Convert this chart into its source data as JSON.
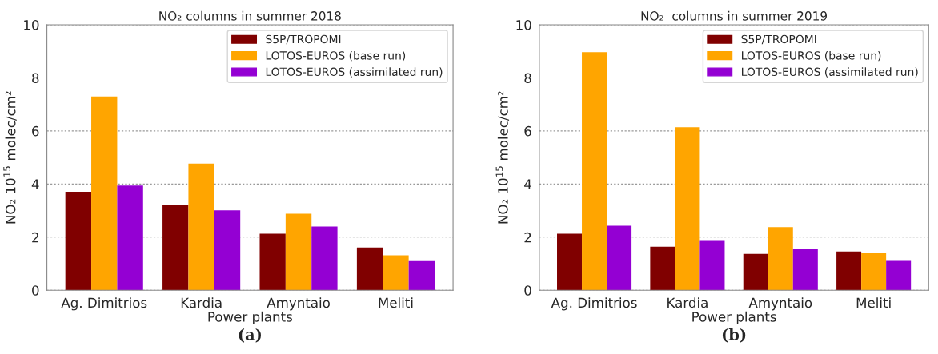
{
  "chart_data": [
    {
      "type": "bar",
      "title": "NO₂ columns in summer 2018",
      "xlabel": "Power plants",
      "ylabel": "NO₂ 10$^{15}$ molec/cm²",
      "categories": [
        "Ag. Dimitrios",
        "Kardia",
        "Amyntaio",
        "Meliti"
      ],
      "series": [
        {
          "name": "S5P/TROPOMI",
          "color": "#800000",
          "values": [
            3.71,
            3.21,
            2.13,
            1.61
          ]
        },
        {
          "name": "LOTOS-EUROS (base run)",
          "color": "#ffa500",
          "values": [
            7.3,
            4.77,
            2.88,
            1.32
          ]
        },
        {
          "name": "LOTOS-EUROS (assimilated run)",
          "color": "#9400d3",
          "values": [
            3.94,
            3.01,
            2.4,
            1.13
          ]
        }
      ],
      "ylim": [
        0,
        10
      ],
      "yticks": [
        0,
        2,
        4,
        6,
        8,
        10
      ],
      "grid": "y",
      "legend": "top right",
      "annotations": [
        "(a)"
      ]
    },
    {
      "type": "bar",
      "title": "NO₂  columns in summer 2019",
      "xlabel": "Power plants",
      "ylabel": "NO₂ 10$^{15}$ molec/cm²",
      "categories": [
        "Ag. Dimitrios",
        "Kardia",
        "Amyntaio",
        "Meliti"
      ],
      "series": [
        {
          "name": "S5P/TROPOMI",
          "color": "#800000",
          "values": [
            2.13,
            1.64,
            1.37,
            1.46
          ]
        },
        {
          "name": "LOTOS-EUROS (base run)",
          "color": "#ffa500",
          "values": [
            8.97,
            6.14,
            2.38,
            1.39
          ]
        },
        {
          "name": "LOTOS-EUROS (assimilated run)",
          "color": "#9400d3",
          "values": [
            2.43,
            1.89,
            1.56,
            1.14
          ]
        }
      ],
      "ylim": [
        0,
        10
      ],
      "yticks": [
        0,
        2,
        4,
        6,
        8,
        10
      ],
      "grid": "y",
      "legend": "top right",
      "annotations": [
        "(b)"
      ]
    }
  ]
}
